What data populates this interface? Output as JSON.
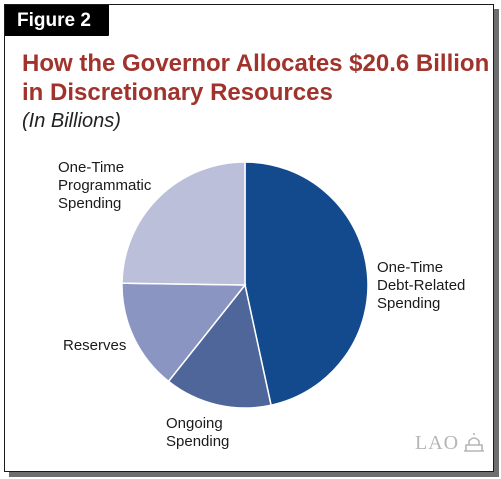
{
  "figure_label": "Figure 2",
  "chart_data": {
    "type": "pie",
    "title": "How the Governor Allocates $20.6 Billion in Discretionary Resources",
    "subtitle": "(In Billions)",
    "slices": [
      {
        "label_lines": [
          "One-Time",
          "Debt-Related",
          "Spending"
        ],
        "value": 9.6,
        "color": "#134a8e"
      },
      {
        "label_lines": [
          "Ongoing",
          "Spending"
        ],
        "value": 2.9,
        "color": "#4e6699"
      },
      {
        "label_lines": [
          "Reserves"
        ],
        "value": 3.0,
        "color": "#8a95c1"
      },
      {
        "label_lines": [
          "One-Time",
          "Programmatic",
          "Spending"
        ],
        "value": 5.1,
        "color": "#bbbfda"
      }
    ],
    "start_angle_deg": 0,
    "direction": "clockwise",
    "slice_border": "#ffffff"
  },
  "logo": {
    "text": "LAO"
  }
}
